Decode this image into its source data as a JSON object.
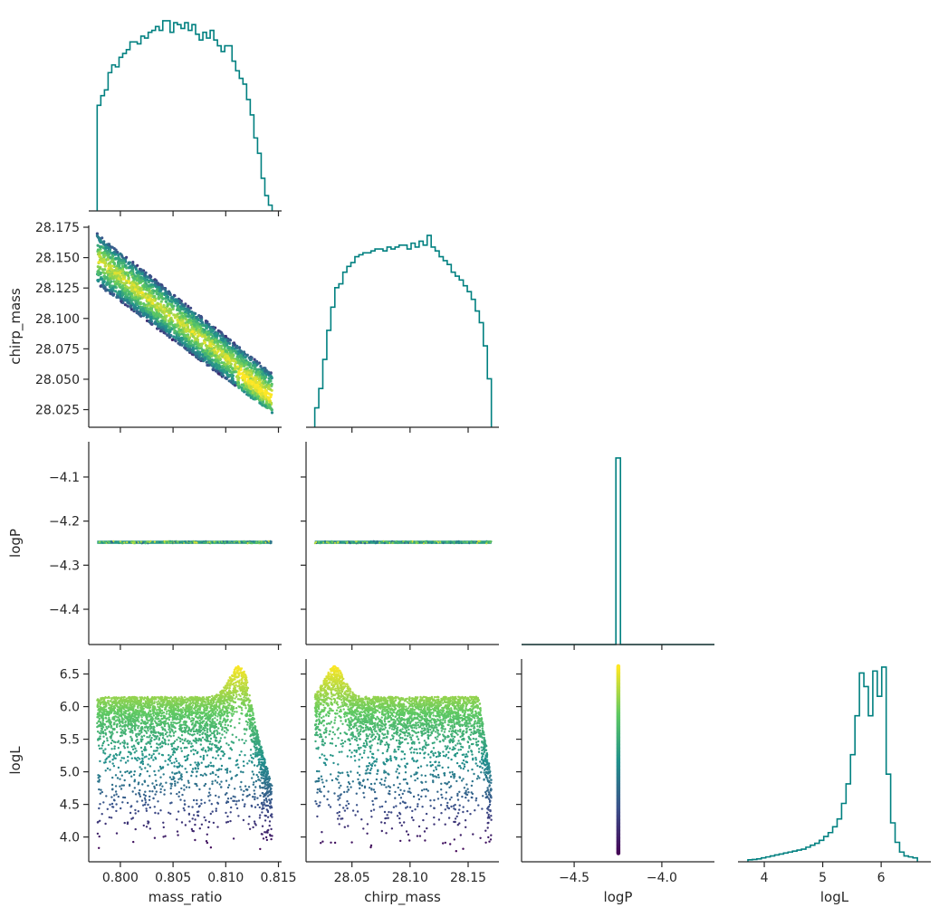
{
  "figure": {
    "type": "corner-plot",
    "hist_color": "#008080",
    "scatter_colormap": "viridis",
    "colormap_stops": [
      "#440154",
      "#3b528b",
      "#21918c",
      "#5ec962",
      "#fde725"
    ],
    "color_by": "logL"
  },
  "chart_data": [
    {
      "id": "hist_mass_ratio",
      "type": "histogram",
      "row": 0,
      "col": 0,
      "variable": "mass_ratio",
      "xlim": [
        0.797,
        0.8153
      ],
      "bin_edges_range": [
        0.7978,
        0.8144
      ],
      "counts": [
        0.55,
        0.6,
        0.63,
        0.72,
        0.76,
        0.75,
        0.8,
        0.82,
        0.84,
        0.88,
        0.88,
        0.87,
        0.91,
        0.9,
        0.93,
        0.94,
        0.96,
        0.94,
        0.99,
        0.99,
        0.93,
        0.98,
        0.97,
        0.95,
        0.98,
        0.94,
        0.97,
        0.92,
        0.89,
        0.93,
        0.9,
        0.94,
        0.89,
        0.86,
        0.83,
        0.86,
        0.86,
        0.78,
        0.73,
        0.69,
        0.66,
        0.58,
        0.5,
        0.38,
        0.3,
        0.17,
        0.08,
        0.03
      ],
      "x_ticks": [
        0.8,
        0.805,
        0.81,
        0.815
      ]
    },
    {
      "id": "scatter_chirp_vs_mass_ratio",
      "type": "scatter",
      "row": 1,
      "col": 0,
      "x_variable": "mass_ratio",
      "y_variable": "chirp_mass",
      "xlim": [
        0.797,
        0.8153
      ],
      "ylim": [
        28.0105,
        28.1765
      ],
      "y_ticks": [
        28.025,
        28.05,
        28.075,
        28.1,
        28.125,
        28.15,
        28.175
      ],
      "y_tick_labels": [
        "28.025",
        "28.050",
        "28.075",
        "28.100",
        "28.125",
        "28.150",
        "28.175"
      ],
      "ylabel": "chirp_mass",
      "band": {
        "upper_left": [
          0.7978,
          28.17
        ],
        "upper_right": [
          0.8144,
          28.055
        ],
        "lower_left": [
          0.7978,
          28.128
        ],
        "lower_right": [
          0.8144,
          28.022
        ]
      }
    },
    {
      "id": "hist_chirp_mass",
      "type": "histogram",
      "row": 1,
      "col": 1,
      "variable": "chirp_mass",
      "xlim": [
        28.0105,
        28.1765
      ],
      "bin_edges_range": [
        28.018,
        28.17
      ],
      "counts": [
        0.1,
        0.2,
        0.35,
        0.5,
        0.62,
        0.72,
        0.74,
        0.8,
        0.83,
        0.85,
        0.88,
        0.89,
        0.9,
        0.9,
        0.91,
        0.92,
        0.92,
        0.91,
        0.93,
        0.92,
        0.93,
        0.94,
        0.94,
        0.92,
        0.95,
        0.93,
        0.96,
        0.94,
        0.99,
        0.93,
        0.91,
        0.88,
        0.86,
        0.84,
        0.8,
        0.78,
        0.76,
        0.73,
        0.7,
        0.66,
        0.6,
        0.54,
        0.42,
        0.25
      ],
      "x_ticks": [
        28.05,
        28.1,
        28.15
      ]
    },
    {
      "id": "scatter_logP_vs_mass_ratio",
      "type": "scatter",
      "row": 2,
      "col": 0,
      "x_variable": "mass_ratio",
      "y_variable": "logP",
      "xlim": [
        0.797,
        0.8153
      ],
      "ylim": [
        -4.48,
        -4.02
      ],
      "y_ticks": [
        -4.1,
        -4.2,
        -4.3,
        -4.4
      ],
      "y_tick_labels": [
        "−4.1",
        "−4.2",
        "−4.3",
        "−4.4"
      ],
      "ylabel": "logP",
      "constant_y": -4.248
    },
    {
      "id": "scatter_logP_vs_chirp_mass",
      "type": "scatter",
      "row": 2,
      "col": 1,
      "x_variable": "chirp_mass",
      "y_variable": "logP",
      "xlim": [
        28.0105,
        28.1765
      ],
      "ylim": [
        -4.48,
        -4.02
      ],
      "constant_y": -4.248
    },
    {
      "id": "hist_logP",
      "type": "histogram",
      "row": 2,
      "col": 2,
      "variable": "logP",
      "xlim": [
        -4.8,
        -3.7
      ],
      "spike": {
        "x_left": -4.262,
        "x_right": -4.236,
        "height": 0.92
      },
      "x_ticks": [
        -4.5,
        -4.0
      ]
    },
    {
      "id": "scatter_logL_vs_mass_ratio",
      "type": "scatter",
      "row": 3,
      "col": 0,
      "x_variable": "mass_ratio",
      "y_variable": "logL",
      "xlim": [
        0.797,
        0.8153
      ],
      "ylim": [
        3.62,
        6.73
      ],
      "y_ticks": [
        4.0,
        4.5,
        5.0,
        5.5,
        6.0,
        6.5
      ],
      "y_tick_labels": [
        "4.0",
        "4.5",
        "5.0",
        "5.5",
        "6.0",
        "6.5"
      ],
      "x_ticks": [
        0.8,
        0.805,
        0.81,
        0.815
      ],
      "x_tick_labels": [
        "0.800",
        "0.805",
        "0.810",
        "0.815"
      ],
      "ylabel": "logL",
      "xlabel": "mass_ratio",
      "ridge_logL": 6.15,
      "peak": {
        "x": 0.8112,
        "logL": 6.62
      }
    },
    {
      "id": "scatter_logL_vs_chirp_mass",
      "type": "scatter",
      "row": 3,
      "col": 1,
      "x_variable": "chirp_mass",
      "y_variable": "logL",
      "xlim": [
        28.0105,
        28.1765
      ],
      "ylim": [
        3.62,
        6.73
      ],
      "x_ticks": [
        28.05,
        28.1,
        28.15
      ],
      "x_tick_labels": [
        "28.05",
        "28.10",
        "28.15"
      ],
      "xlabel": "chirp_mass",
      "ridge_logL": 6.15,
      "peak": {
        "x": 28.035,
        "logL": 6.62
      }
    },
    {
      "id": "scatter_logL_vs_logP",
      "type": "scatter",
      "row": 3,
      "col": 2,
      "x_variable": "logP",
      "y_variable": "logL",
      "xlim": [
        -4.8,
        -3.7
      ],
      "ylim": [
        3.62,
        6.73
      ],
      "x_ticks": [
        -4.5,
        -4.0
      ],
      "x_tick_labels": [
        "−4.5",
        "−4.0"
      ],
      "xlabel": "logP",
      "constant_x": -4.248,
      "logL_range": [
        3.75,
        6.62
      ]
    },
    {
      "id": "hist_logL",
      "type": "histogram",
      "row": 3,
      "col": 3,
      "variable": "logL",
      "xlim": [
        3.55,
        6.85
      ],
      "bin_edges_range": [
        3.72,
        6.62
      ],
      "counts": [
        0.01,
        0.012,
        0.015,
        0.02,
        0.025,
        0.03,
        0.035,
        0.04,
        0.045,
        0.05,
        0.055,
        0.06,
        0.065,
        0.075,
        0.085,
        0.095,
        0.11,
        0.13,
        0.15,
        0.18,
        0.22,
        0.3,
        0.4,
        0.55,
        0.75,
        0.97,
        0.9,
        0.75,
        0.98,
        0.85,
        1.0,
        0.45,
        0.2,
        0.1,
        0.05,
        0.03,
        0.025,
        0.02
      ],
      "x_ticks": [
        4,
        5,
        6
      ],
      "x_tick_labels": [
        "4",
        "5",
        "6"
      ],
      "xlabel": "logL"
    }
  ]
}
